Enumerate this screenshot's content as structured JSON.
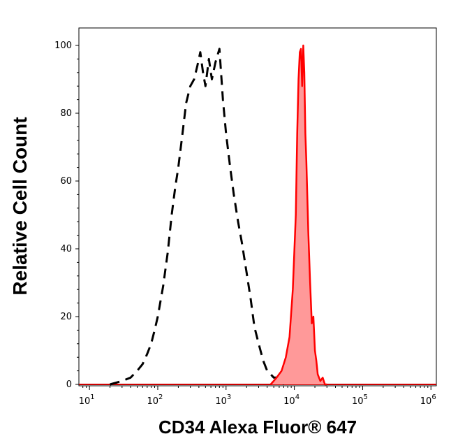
{
  "chart_data": {
    "type": "area",
    "xlabel": "CD34 Alexa Fluor® 647",
    "ylabel": "Relative Cell Count",
    "x_scale": "log",
    "xlim": [
      7,
      1200000
    ],
    "ylim": [
      0,
      105
    ],
    "x_ticks": [
      {
        "value": 10,
        "base": "10",
        "exp": "1"
      },
      {
        "value": 100,
        "base": "10",
        "exp": "2"
      },
      {
        "value": 1000,
        "base": "10",
        "exp": "3"
      },
      {
        "value": 10000,
        "base": "10",
        "exp": "4"
      },
      {
        "value": 100000,
        "base": "10",
        "exp": "5"
      },
      {
        "value": 1000000,
        "base": "10",
        "exp": "6"
      }
    ],
    "y_ticks": [
      {
        "value": 0,
        "label": "0"
      },
      {
        "value": 20,
        "label": "20"
      },
      {
        "value": 40,
        "label": "40"
      },
      {
        "value": 60,
        "label": "60"
      },
      {
        "value": 80,
        "label": "80"
      },
      {
        "value": 100,
        "label": "100"
      }
    ],
    "grid": false,
    "legend": "none",
    "series": [
      {
        "style": "dashed-outline",
        "color": "#000000",
        "x": [
          20,
          30,
          40,
          50,
          60,
          70,
          80,
          90,
          100,
          120,
          140,
          160,
          180,
          200,
          230,
          260,
          300,
          340,
          380,
          420,
          460,
          500,
          560,
          620,
          700,
          800,
          900,
          1000,
          1150,
          1300,
          1500,
          1700,
          2000,
          2300,
          2600,
          3000,
          3500,
          4000,
          4500,
          5000,
          5500,
          6000,
          7000
        ],
        "y": [
          0,
          1,
          2,
          4,
          6,
          9,
          12,
          16,
          20,
          29,
          39,
          50,
          58,
          64,
          74,
          83,
          88,
          90,
          94,
          98,
          92,
          88,
          96,
          90,
          95,
          99,
          84,
          74,
          64,
          56,
          48,
          42,
          33,
          25,
          17,
          12,
          7,
          4,
          3,
          2,
          2,
          1,
          0
        ]
      },
      {
        "style": "filled",
        "color": "#ff0000",
        "fill": "#ff9999",
        "x": [
          4500,
          5500,
          6500,
          7500,
          8500,
          9500,
          10500,
          11000,
          11500,
          12000,
          12500,
          13000,
          13500,
          14000,
          14500,
          15000,
          16000,
          17000,
          18000,
          19000,
          20000,
          21000,
          22000,
          24000,
          26000,
          28000,
          30000
        ],
        "y": [
          0,
          2,
          4,
          8,
          14,
          28,
          50,
          74,
          90,
          98,
          99,
          88,
          100,
          92,
          74,
          66,
          45,
          30,
          18,
          20,
          10,
          7,
          3,
          1,
          2,
          0,
          0
        ]
      }
    ]
  }
}
